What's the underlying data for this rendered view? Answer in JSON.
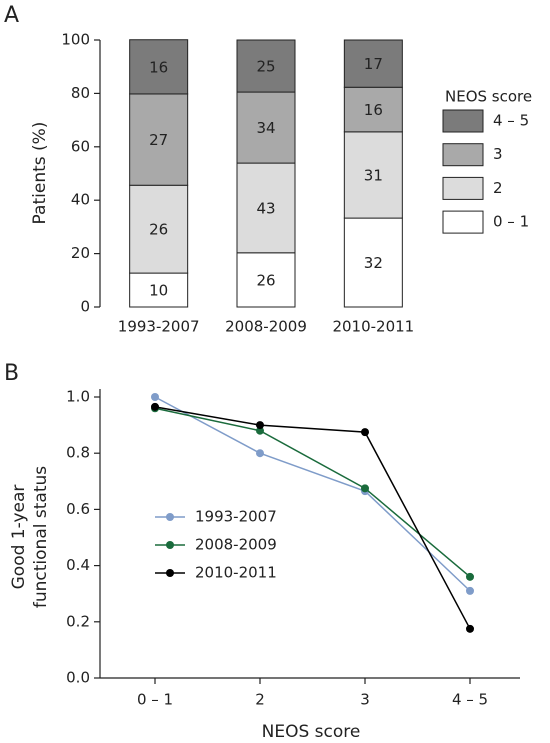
{
  "chart_data": [
    {
      "type": "bar",
      "stacked": true,
      "panel": "A",
      "ylabel": "Patients (%)",
      "categories": [
        "1993-2007",
        "2008-2009",
        "2010-2011"
      ],
      "ylim": [
        0,
        100
      ],
      "yticks": [
        0,
        20,
        40,
        60,
        80,
        100
      ],
      "legend_title": "NEOS score",
      "series": [
        {
          "name": "0 – 1",
          "color": "#ffffff",
          "values": [
            12.7,
            20.3,
            33.3
          ],
          "counts": [
            10,
            26,
            32
          ]
        },
        {
          "name": "2",
          "color": "#dcdcdc",
          "values": [
            32.9,
            33.6,
            32.3
          ],
          "counts": [
            26,
            43,
            31
          ]
        },
        {
          "name": "3",
          "color": "#a9a9a9",
          "values": [
            34.2,
            26.6,
            16.7
          ],
          "counts": [
            27,
            34,
            16
          ]
        },
        {
          "name": "4 – 5",
          "color": "#7b7b7b",
          "values": [
            20.3,
            19.5,
            17.7
          ],
          "counts": [
            16,
            25,
            17
          ]
        }
      ]
    },
    {
      "type": "line",
      "panel": "B",
      "ylabel": [
        "Good 1-year",
        "functional status"
      ],
      "xlabel": "NEOS score",
      "categories": [
        "0 – 1",
        "2",
        "3",
        "4 – 5"
      ],
      "ylim": [
        0,
        1.0
      ],
      "yticks": [
        {
          "value": 0,
          "label": "0.0"
        },
        0.2,
        0.4,
        0.6,
        0.8,
        {
          "value": 1.0,
          "label": "1.0"
        }
      ],
      "series": [
        {
          "name": "1993-2007",
          "color": "#7f9cc9",
          "values": [
            1.0,
            0.8,
            0.665,
            0.31
          ]
        },
        {
          "name": "2008-2009",
          "color": "#1a6b3c",
          "values": [
            0.96,
            0.88,
            0.675,
            0.36
          ]
        },
        {
          "name": "2010-2011",
          "color": "#000000",
          "values": [
            0.965,
            0.9,
            0.875,
            0.175
          ]
        }
      ]
    }
  ]
}
